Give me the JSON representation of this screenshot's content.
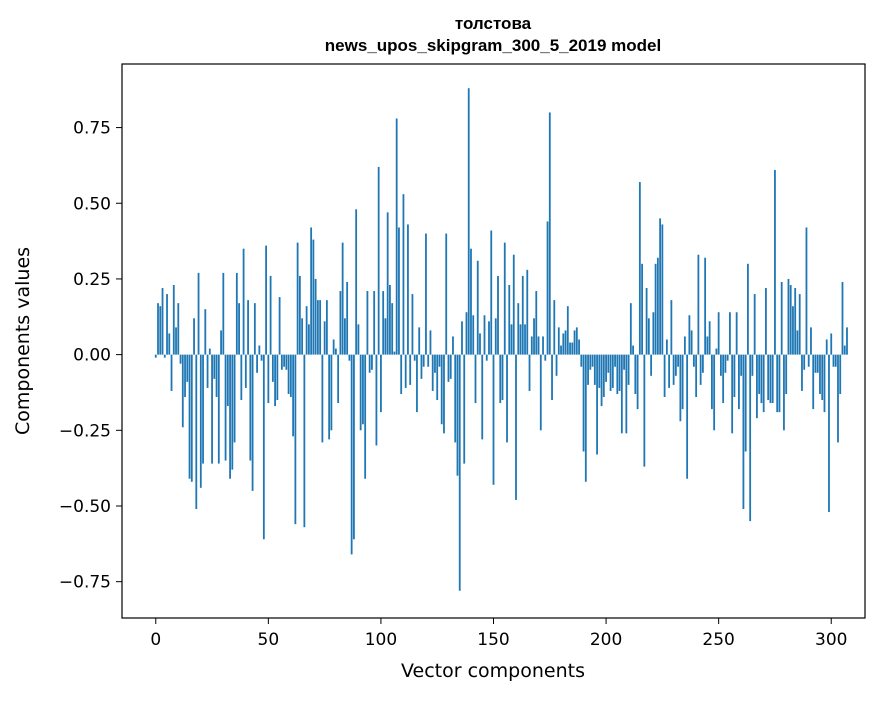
{
  "chart_data": {
    "type": "bar",
    "title": "толстова",
    "subtitle": "news_upos_skipgram_300_5_2019 model",
    "xlabel": "Vector components",
    "ylabel": "Components values",
    "xlim": [
      -15,
      315
    ],
    "ylim": [
      -0.87,
      0.96
    ],
    "xticks": [
      0,
      50,
      100,
      150,
      200,
      250,
      300
    ],
    "xtick_labels": [
      "0",
      "50",
      "100",
      "150",
      "200",
      "250",
      "300"
    ],
    "yticks": [
      -0.75,
      -0.5,
      -0.25,
      0.0,
      0.25,
      0.5,
      0.75
    ],
    "ytick_labels": [
      "−0.75",
      "−0.50",
      "−0.25",
      "0.00",
      "0.25",
      "0.50",
      "0.75"
    ],
    "bar_color": "#1f77b4",
    "values": [
      -0.01,
      0.17,
      0.16,
      0.22,
      -0.01,
      0.2,
      0.07,
      -0.12,
      0.23,
      0.09,
      0.17,
      -0.03,
      -0.24,
      -0.14,
      -0.09,
      -0.41,
      -0.42,
      0.12,
      -0.51,
      0.27,
      -0.44,
      -0.36,
      0.15,
      -0.11,
      0.02,
      -0.36,
      -0.08,
      -0.14,
      -0.36,
      0.08,
      0.27,
      -0.35,
      -0.17,
      -0.41,
      -0.38,
      -0.29,
      0.27,
      0.17,
      -0.15,
      0.35,
      -0.11,
      0.18,
      -0.35,
      -0.45,
      0.17,
      -0.06,
      0.03,
      -0.02,
      -0.61,
      0.36,
      -0.16,
      0.26,
      -0.09,
      -0.17,
      -0.15,
      0.19,
      -0.05,
      -0.04,
      -0.05,
      -0.13,
      -0.14,
      -0.27,
      -0.56,
      0.37,
      0.26,
      0.12,
      -0.57,
      0.16,
      0.1,
      0.42,
      0.38,
      0.25,
      0.18,
      0.18,
      -0.29,
      0.11,
      0.18,
      -0.28,
      -0.25,
      0.05,
      0.02,
      -0.16,
      0.21,
      0.37,
      0.12,
      0.24,
      -0.02,
      -0.66,
      -0.61,
      0.48,
      0.1,
      -0.25,
      -0.23,
      -0.41,
      0.21,
      -0.06,
      -0.05,
      0.21,
      -0.3,
      0.62,
      -0.19,
      0.21,
      0.12,
      0.47,
      0.23,
      0.17,
      0.01,
      0.78,
      0.42,
      -0.13,
      0.53,
      -0.11,
      0.43,
      -0.1,
      0.2,
      -0.02,
      -0.19,
      0.09,
      -0.08,
      -0.04,
      0.4,
      -0.04,
      0.08,
      -0.12,
      -0.06,
      -0.15,
      -0.04,
      -0.23,
      -0.26,
      0.4,
      -0.09,
      -0.08,
      0.06,
      -0.29,
      -0.4,
      -0.78,
      0.11,
      -0.36,
      0.14,
      0.88,
      0.35,
      0.13,
      -0.16,
      0.31,
      0.07,
      -0.28,
      0.13,
      -0.02,
      0.11,
      0.41,
      -0.43,
      0.12,
      0.26,
      -0.16,
      -0.15,
      0.37,
      -0.29,
      0.23,
      0.1,
      0.33,
      -0.48,
      0.17,
      0.1,
      0.26,
      0.1,
      0.28,
      -0.12,
      0.06,
      0.12,
      0.21,
      0.06,
      -0.25,
      0.06,
      -0.02,
      0.44,
      0.8,
      -0.15,
      0.18,
      -0.07,
      0.09,
      0.03,
      0.07,
      0.08,
      0.16,
      0.04,
      0.04,
      0.08,
      0.09,
      0.05,
      -0.04,
      -0.32,
      -0.42,
      -0.1,
      -0.05,
      -0.04,
      -0.1,
      -0.33,
      -0.11,
      -0.17,
      -0.14,
      -0.09,
      -0.06,
      -0.12,
      -0.11,
      -0.04,
      -0.13,
      -0.12,
      -0.26,
      -0.05,
      -0.26,
      -0.1,
      0.17,
      0.03,
      -0.13,
      -0.18,
      0.57,
      0.3,
      -0.37,
      0.22,
      0.12,
      -0.07,
      0.14,
      0.3,
      0.32,
      0.45,
      0.43,
      -0.14,
      0.05,
      -0.11,
      0.18,
      -0.1,
      -0.07,
      -0.04,
      -0.22,
      -0.18,
      0.06,
      -0.41,
      0.13,
      0.08,
      -0.04,
      -0.14,
      0.33,
      -0.1,
      -0.06,
      0.32,
      0.06,
      0.11,
      -0.18,
      -0.25,
      0.02,
      0.14,
      -0.07,
      -0.16,
      -0.06,
      -0.02,
      0.14,
      -0.26,
      -0.14,
      0.14,
      -0.18,
      -0.07,
      -0.51,
      -0.32,
      0.3,
      -0.55,
      -0.07,
      0.2,
      -0.21,
      -0.13,
      -0.16,
      -0.19,
      0.22,
      -0.15,
      -0.16,
      -0.16,
      0.61,
      -0.19,
      -0.19,
      0.24,
      -0.25,
      -0.13,
      0.25,
      0.23,
      0.16,
      0.22,
      0.08,
      0.2,
      -0.12,
      -0.05,
      0.42,
      -0.04,
      0.09,
      -0.18,
      -0.06,
      -0.06,
      -0.13,
      -0.15,
      -0.19,
      0.05,
      -0.52,
      0.07,
      -0.04,
      -0.04,
      -0.29,
      -0.13,
      0.24,
      0.03,
      0.09
    ]
  }
}
